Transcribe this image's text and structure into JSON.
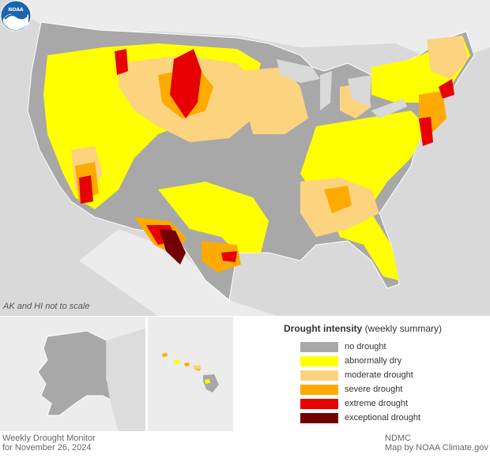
{
  "map": {
    "scale_note": "AK and HI not to scale"
  },
  "legend": {
    "title_bold": "Drought intensity",
    "title_rest": " (weekly summary)",
    "items": [
      {
        "label": "no drought",
        "color": "#a8a8a8"
      },
      {
        "label": "abnormally dry",
        "color": "#ffff00"
      },
      {
        "label": "moderate drought",
        "color": "#fcd37f"
      },
      {
        "label": "severe drought",
        "color": "#ffaa00"
      },
      {
        "label": "extreme drought",
        "color": "#e60000"
      },
      {
        "label": "exceptional drought",
        "color": "#730000"
      }
    ]
  },
  "footer": {
    "left_line1": "Weekly Drought Monitor",
    "left_line2": "for November 26, 2024",
    "right_line1": "NDMC",
    "right_line2": "Map by NOAA Climate.gov"
  },
  "colors": {
    "ocean": "#d9d9d9",
    "outside_land": "#ececec",
    "noaa_blue": "#1b64b0"
  },
  "icons": {
    "logo": "noaa-logo-icon"
  }
}
